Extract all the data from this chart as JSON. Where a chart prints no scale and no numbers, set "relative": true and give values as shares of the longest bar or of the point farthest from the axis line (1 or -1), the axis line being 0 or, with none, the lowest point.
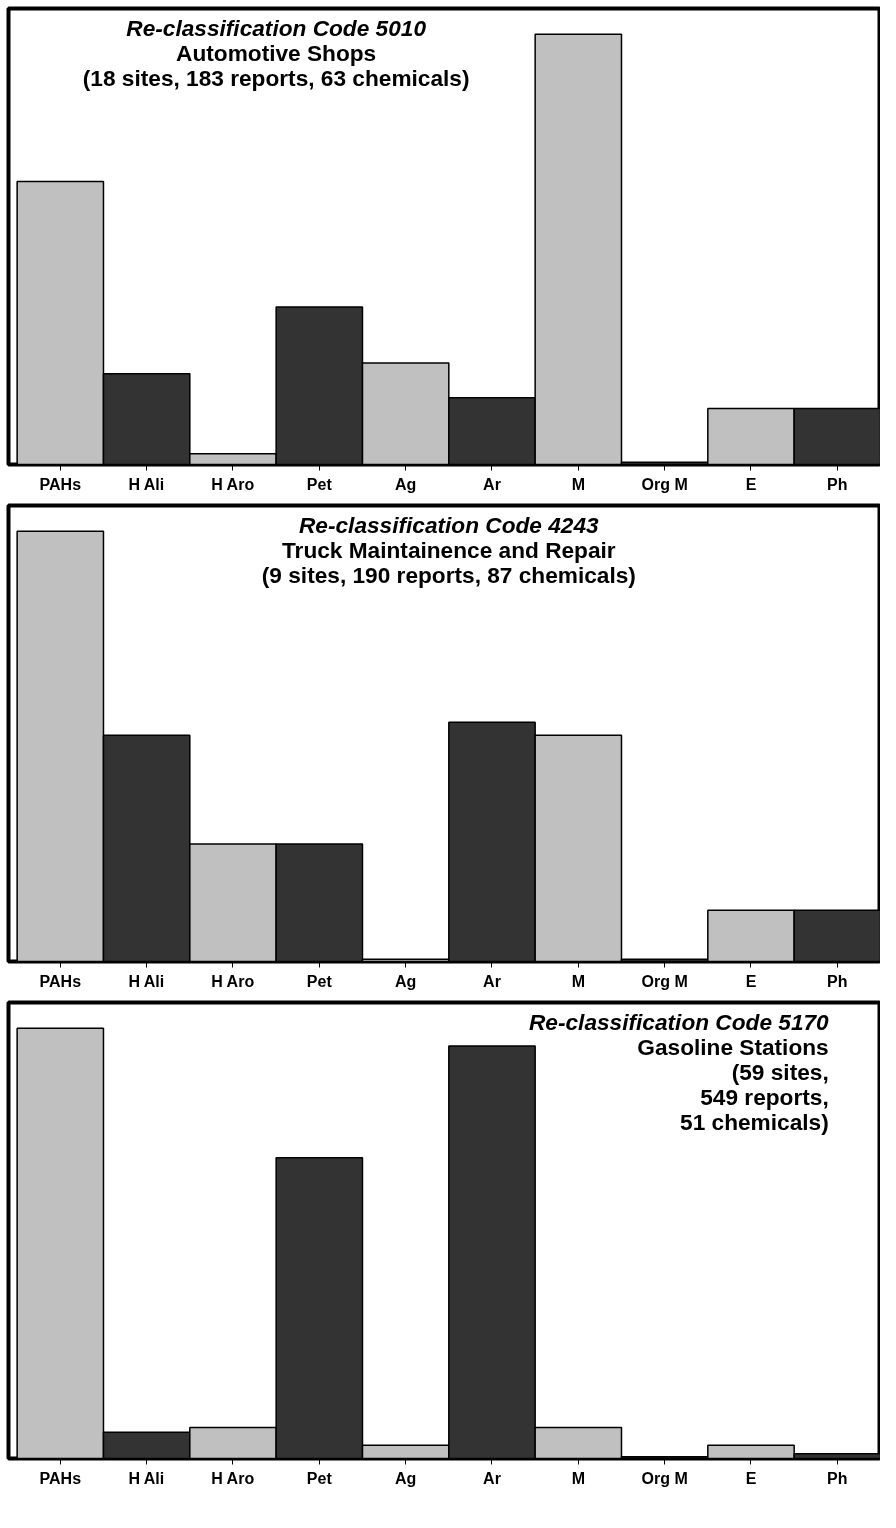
{
  "chart_data": [
    {
      "type": "bar",
      "relative": true,
      "title": "Re-classification Code 5010",
      "subtitle": "Automotive Shops\n(18 sites, 183 reports, 63 chemicals)",
      "categories": [
        "PAHs",
        "H Ali",
        "H Aro",
        "Pet",
        "Ag",
        "Ar",
        "M",
        "Org M",
        "E",
        "Ph"
      ],
      "values": [
        0.658,
        0.211,
        0.025,
        0.366,
        0.236,
        0.155,
        1,
        0.005,
        0.13,
        0.13
      ],
      "colors": [
        "#c0c0c0",
        "#333333",
        "#c0c0c0",
        "#333333",
        "#c0c0c0",
        "#333333",
        "#c0c0c0",
        "#333333",
        "#c0c0c0",
        "#333333"
      ]
    },
    {
      "type": "bar",
      "relative": true,
      "title": "Re-classification Code 4243",
      "subtitle": "Truck Maintainence and Repair\n(9 sites, 190 reports, 87 chemicals)",
      "categories": [
        "PAHs",
        "H Ali",
        "H Aro",
        "Pet",
        "Ag",
        "Ar",
        "M",
        "Org M",
        "E",
        "Ph"
      ],
      "values": [
        1,
        0.526,
        0.273,
        0.273,
        0.005,
        0.556,
        0.526,
        0.005,
        0.119,
        0.119
      ],
      "colors": [
        "#c0c0c0",
        "#333333",
        "#c0c0c0",
        "#333333",
        "#c0c0c0",
        "#333333",
        "#c0c0c0",
        "#333333",
        "#c0c0c0",
        "#333333"
      ]
    },
    {
      "type": "bar",
      "relative": true,
      "title": "Re-classification Code 5170",
      "subtitle": "Gasoline Stations\n(59 sites,\n549 reports,\n51 chemicals)",
      "categories": [
        "PAHs",
        "H Ali",
        "H Aro",
        "Pet",
        "Ag",
        "Ar",
        "M",
        "Org M",
        "E",
        "Ph"
      ],
      "values": [
        1,
        0.061,
        0.072,
        0.699,
        0.031,
        0.959,
        0.072,
        0.004,
        0.031,
        0.011
      ],
      "colors": [
        "#c0c0c0",
        "#333333",
        "#c0c0c0",
        "#333333",
        "#c0c0c0",
        "#333333",
        "#c0c0c0",
        "#333333",
        "#c0c0c0",
        "#333333"
      ]
    }
  ]
}
